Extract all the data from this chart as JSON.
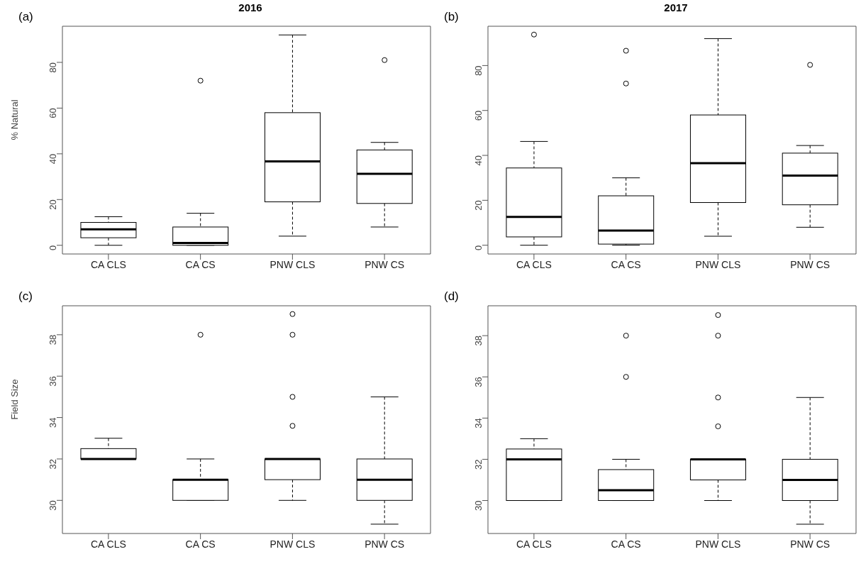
{
  "chart_data": [
    {
      "type": "box",
      "title": "2016",
      "annotations": [
        "(a)"
      ],
      "ylabel": "% Natural",
      "categories": [
        "CA CLS",
        "CA CS",
        "PNW CLS",
        "PNW CS"
      ],
      "ylim": [
        -3.8,
        95.8
      ],
      "yticks": [
        0,
        20,
        40,
        60,
        80
      ],
      "color": "#000000",
      "boxes": [
        {
          "low": 0,
          "q1": 3.3,
          "median": 7,
          "q3": 10,
          "high": 12.5
        },
        {
          "low": 0,
          "q1": 0,
          "median": 1,
          "q3": 8,
          "high": 14,
          "outliers": [
            72
          ]
        },
        {
          "low": 4,
          "q1": 19,
          "median": 36.7,
          "q3": 58,
          "high": 92
        },
        {
          "low": 8,
          "q1": 18.3,
          "median": 31.3,
          "q3": 41.7,
          "high": 45,
          "outliers": [
            81
          ]
        }
      ]
    },
    {
      "type": "box",
      "title": "2017",
      "annotations": [
        "(b)"
      ],
      "categories": [
        "CA CLS",
        "CA CS",
        "PNW CLS",
        "PNW CS"
      ],
      "ylim": [
        -3.9,
        97.5
      ],
      "yticks": [
        0,
        20,
        40,
        60,
        80
      ],
      "color": "#000000",
      "boxes": [
        {
          "low": 0,
          "q1": 3.7,
          "median": 12.6,
          "q3": 34.4,
          "high": 46.2,
          "outliers": [
            93.8
          ]
        },
        {
          "low": 0,
          "q1": 0.5,
          "median": 6.5,
          "q3": 22,
          "high": 30,
          "outliers": [
            72,
            86.6
          ]
        },
        {
          "low": 4,
          "q1": 19,
          "median": 36.5,
          "q3": 58,
          "high": 92
        },
        {
          "low": 8,
          "q1": 18,
          "median": 31,
          "q3": 41,
          "high": 44.4,
          "outliers": [
            80.3
          ]
        }
      ]
    },
    {
      "type": "box",
      "annotations": [
        "(c)"
      ],
      "ylabel": "Field Size",
      "categories": [
        "CA CLS",
        "CA CS",
        "PNW CLS",
        "PNW CS"
      ],
      "ylim": [
        28.4,
        39.4
      ],
      "yticks": [
        30,
        32,
        34,
        36,
        38
      ],
      "color": "#000000",
      "boxes": [
        {
          "low": 32,
          "q1": 32,
          "median": 32,
          "q3": 32.5,
          "high": 33
        },
        {
          "low": 30,
          "q1": 30,
          "median": 31,
          "q3": 31,
          "high": 32,
          "outliers": [
            38
          ]
        },
        {
          "low": 30,
          "q1": 31,
          "median": 32,
          "q3": 32,
          "high": 32,
          "outliers": [
            33.6,
            35,
            38,
            39
          ]
        },
        {
          "low": 28.85,
          "q1": 30,
          "median": 31,
          "q3": 32,
          "high": 35
        }
      ]
    },
    {
      "type": "box",
      "annotations": [
        "(d)"
      ],
      "categories": [
        "CA CLS",
        "CA CS",
        "PNW CLS",
        "PNW CS"
      ],
      "ylim": [
        28.4,
        39.45
      ],
      "yticks": [
        30,
        32,
        34,
        36,
        38
      ],
      "color": "#000000",
      "boxes": [
        {
          "low": 30,
          "q1": 30,
          "median": 32,
          "q3": 32.5,
          "high": 33
        },
        {
          "low": 30,
          "q1": 30,
          "median": 30.5,
          "q3": 31.5,
          "high": 32,
          "outliers": [
            36,
            38
          ]
        },
        {
          "low": 30,
          "q1": 31,
          "median": 32,
          "q3": 32,
          "high": 32,
          "outliers": [
            33.6,
            35,
            38,
            39
          ]
        },
        {
          "low": 28.85,
          "q1": 30,
          "median": 31,
          "q3": 32,
          "high": 35
        }
      ]
    }
  ]
}
